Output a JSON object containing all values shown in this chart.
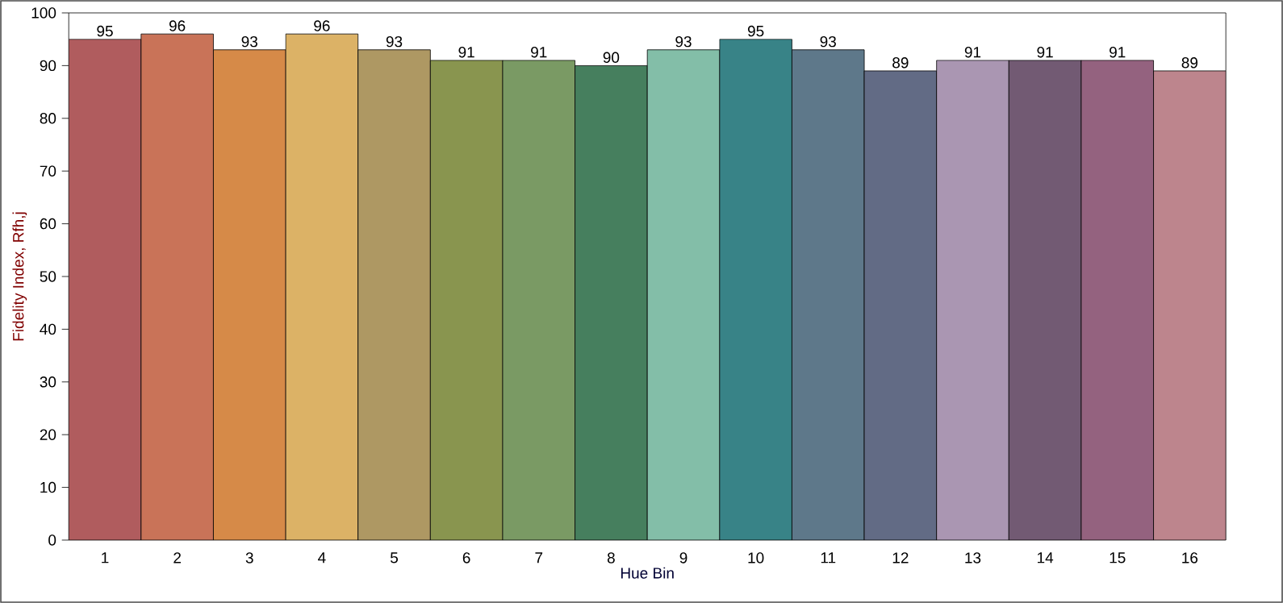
{
  "chart_data": {
    "type": "bar",
    "xlabel": "Hue Bin",
    "ylabel": "Fidelity Index, Rfh,j",
    "categories": [
      "1",
      "2",
      "3",
      "4",
      "5",
      "6",
      "7",
      "8",
      "9",
      "10",
      "11",
      "12",
      "13",
      "14",
      "15",
      "16"
    ],
    "values": [
      95,
      96,
      93,
      96,
      93,
      91,
      91,
      90,
      93,
      95,
      93,
      89,
      91,
      91,
      91,
      89
    ],
    "colors": [
      "#b05c5e",
      "#c97358",
      "#d68a48",
      "#dcb266",
      "#ae9863",
      "#89954f",
      "#7a9a64",
      "#467f5e",
      "#83bea8",
      "#388387",
      "#5e788a",
      "#626b85",
      "#aa96b2",
      "#725a73",
      "#94627f",
      "#bd858d"
    ],
    "ylim": [
      0,
      100
    ],
    "yticks": [
      0,
      10,
      20,
      30,
      40,
      50,
      60,
      70,
      80,
      90,
      100
    ],
    "data_labels": true,
    "grid": false
  }
}
